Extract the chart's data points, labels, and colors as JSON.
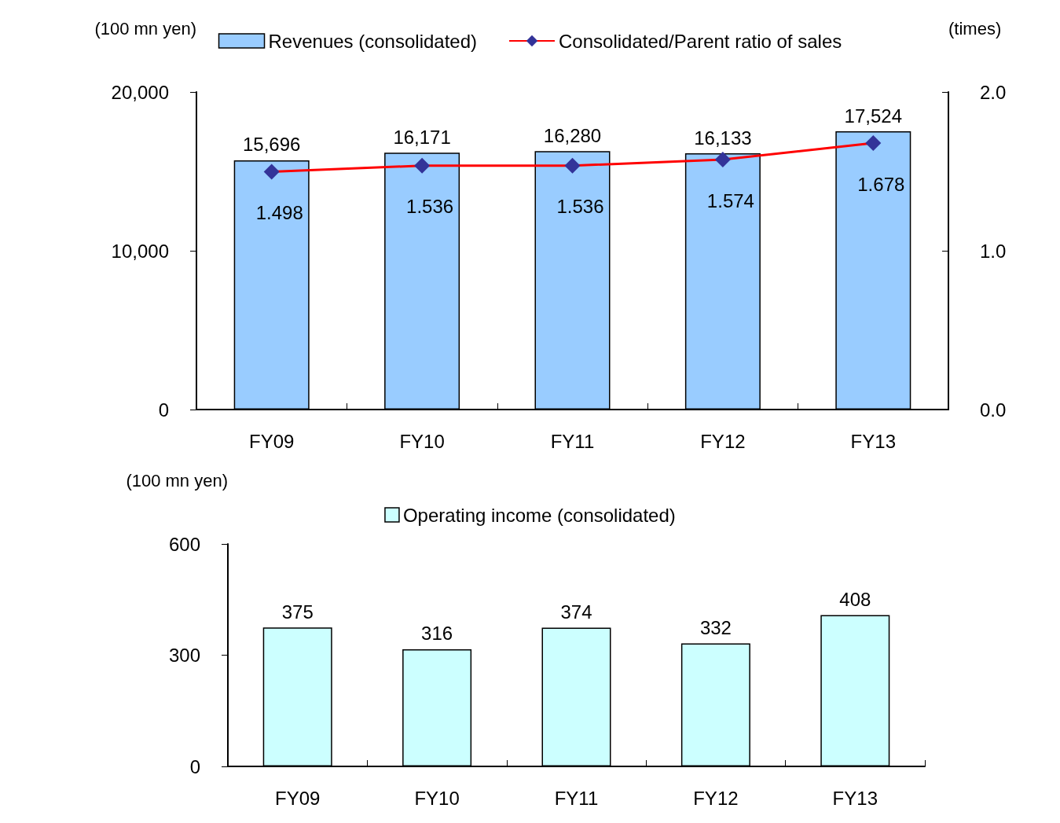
{
  "chart_data": [
    {
      "type": "bar",
      "ylabel": "(100 mn yen)",
      "y2label": "(times)",
      "categories": [
        "FY09",
        "FY10",
        "FY11",
        "FY12",
        "FY13"
      ],
      "series": [
        {
          "name": "Revenues (consolidated)",
          "color": "#99ccff",
          "values": [
            15696,
            16171,
            16280,
            16133,
            17524
          ],
          "value_labels": [
            "15,696",
            "16,171",
            "16,280",
            "16,133",
            "17,524"
          ]
        },
        {
          "name": "Consolidated/Parent ratio of sales",
          "type": "line",
          "axis": "y2",
          "color": "#ff0000",
          "marker": "diamond",
          "values": [
            1.498,
            1.536,
            1.536,
            1.574,
            1.678
          ],
          "value_labels": [
            "1.498",
            "1.536",
            "1.536",
            "1.574",
            "1.678"
          ]
        }
      ],
      "ylim": [
        0,
        20000
      ],
      "yticks": [
        0,
        {
          "value": 10000,
          "label": "10,000"
        },
        {
          "value": 20000,
          "label": "20,000"
        }
      ],
      "y2lim": [
        0,
        2
      ],
      "y2ticks": [
        {
          "value": 0,
          "label": "0.0"
        },
        {
          "value": 1,
          "label": "1.0"
        },
        {
          "value": 2,
          "label": "2.0"
        }
      ],
      "grid": false,
      "legend": "top"
    },
    {
      "type": "bar",
      "ylabel": "(100 mn yen)",
      "categories": [
        "FY09",
        "FY10",
        "FY11",
        "FY12",
        "FY13"
      ],
      "series": [
        {
          "name": "Operating income (consolidated)",
          "color": "#ccffff",
          "values": [
            375,
            316,
            374,
            332,
            408
          ]
        }
      ],
      "data_labels": true,
      "ylim": [
        0,
        600
      ],
      "yticks": [
        0,
        300,
        600
      ],
      "grid": false,
      "legend": "top"
    }
  ]
}
